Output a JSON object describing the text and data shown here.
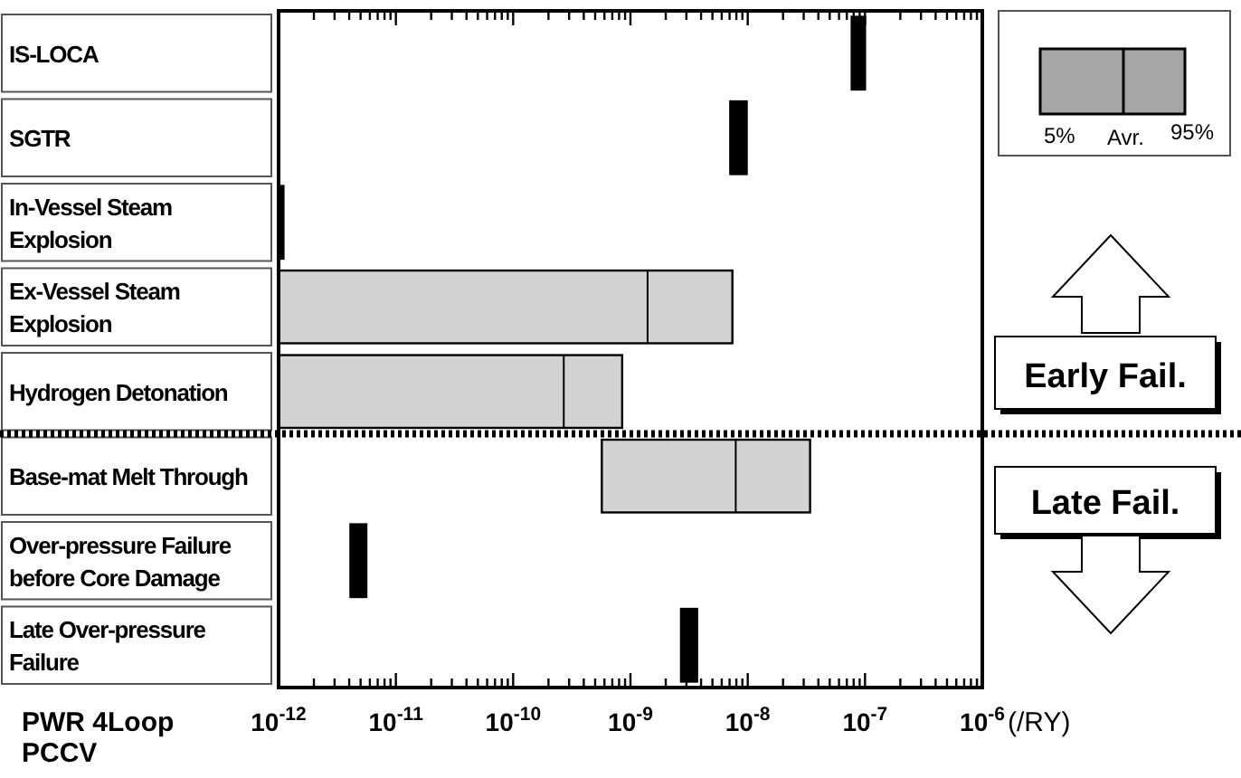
{
  "chart_data": {
    "type": "box",
    "orientation": "horizontal",
    "log": "x",
    "xlabel": "(/RY)",
    "categories": [
      "IS-LOCA",
      "SGTR",
      "In-Vessel Steam Explosion",
      "Ex-Vessel Steam Explosion",
      "Hydrogen Detonation",
      "Base-mat Melt Through",
      "Over-pressure Failure before Core Damage",
      "Late Over-pressure Failure"
    ],
    "boxes": [
      {
        "low": 7.7e-08,
        "q1": 7.7e-08,
        "median": 9e-08,
        "q3": 1e-07,
        "high": 1e-07
      },
      {
        "low": 7.1e-09,
        "q1": 7.1e-09,
        "median": 8.3e-09,
        "q3": 9.8e-09,
        "high": 9.8e-09
      },
      {
        "low": 1e-12,
        "q1": 1e-12,
        "median": 1.05e-12,
        "q3": 1.1e-12,
        "high": 1.1e-12
      },
      {
        "low": 1e-12,
        "q1": 1e-12,
        "median": 1.4e-09,
        "q3": 7.4e-09,
        "high": 7.4e-09
      },
      {
        "low": 1e-12,
        "q1": 1e-12,
        "median": 2.7e-10,
        "q3": 8.5e-10,
        "high": 8.5e-10
      },
      {
        "low": 5.7e-10,
        "q1": 5.7e-10,
        "median": 7.9e-09,
        "q3": 3.4e-08,
        "high": 3.4e-08
      },
      {
        "low": 4.1e-12,
        "q1": 4.1e-12,
        "median": 4.8e-12,
        "q3": 5.6e-12,
        "high": 5.6e-12
      },
      {
        "low": 2.7e-09,
        "q1": 2.7e-09,
        "median": 3.2e-09,
        "q3": 3.7e-09,
        "high": 3.7e-09
      }
    ],
    "colors": [
      "#000000",
      "#000000",
      "#000000",
      "#d3d3d3",
      "#d3d3d3",
      "#d3d3d3",
      "#000000",
      "#000000"
    ],
    "xlim": [
      1e-12,
      1e-06
    ],
    "xticks": [
      {
        "value": 1e-12,
        "label": "10$^{-12}$"
      },
      {
        "value": 2e-12,
        "label": null
      },
      {
        "value": 3e-12,
        "label": null
      },
      {
        "value": 4e-12,
        "label": null
      },
      {
        "value": 5e-12,
        "label": null
      },
      {
        "value": 6e-12,
        "label": null
      },
      {
        "value": 7e-12,
        "label": null
      },
      {
        "value": 8e-12,
        "label": null
      },
      {
        "value": 9e-12,
        "label": null
      },
      {
        "value": 1e-11,
        "label": "10$^{-11}$"
      },
      {
        "value": 2e-11,
        "label": null
      },
      {
        "value": 3e-11,
        "label": null
      },
      {
        "value": 4e-11,
        "label": null
      },
      {
        "value": 5e-11,
        "label": null
      },
      {
        "value": 6e-11,
        "label": null
      },
      {
        "value": 7e-11,
        "label": null
      },
      {
        "value": 8e-11,
        "label": null
      },
      {
        "value": 9e-11,
        "label": null
      },
      {
        "value": 1e-10,
        "label": "10$^{-10}$"
      },
      {
        "value": 2e-10,
        "label": null
      },
      {
        "value": 3e-10,
        "label": null
      },
      {
        "value": 4e-10,
        "label": null
      },
      {
        "value": 5e-10,
        "label": null
      },
      {
        "value": 6e-10,
        "label": null
      },
      {
        "value": 7e-10,
        "label": null
      },
      {
        "value": 8e-10,
        "label": null
      },
      {
        "value": 9e-10,
        "label": null
      },
      {
        "value": 1e-09,
        "label": "10$^{-9}$"
      },
      {
        "value": 2e-09,
        "label": null
      },
      {
        "value": 3e-09,
        "label": null
      },
      {
        "value": 4e-09,
        "label": null
      },
      {
        "value": 5e-09,
        "label": null
      },
      {
        "value": 6e-09,
        "label": null
      },
      {
        "value": 7e-09,
        "label": null
      },
      {
        "value": 8e-09,
        "label": null
      },
      {
        "value": 9e-09,
        "label": null
      },
      {
        "value": 1e-08,
        "label": "10$^{-8}$"
      },
      {
        "value": 2e-08,
        "label": null
      },
      {
        "value": 3e-08,
        "label": null
      },
      {
        "value": 4e-08,
        "label": null
      },
      {
        "value": 5e-08,
        "label": null
      },
      {
        "value": 6e-08,
        "label": null
      },
      {
        "value": 7e-08,
        "label": null
      },
      {
        "value": 8e-08,
        "label": null
      },
      {
        "value": 9e-08,
        "label": null
      },
      {
        "value": 1e-07,
        "label": "10$^{-7}$"
      },
      {
        "value": 2e-07,
        "label": null
      },
      {
        "value": 3e-07,
        "label": null
      },
      {
        "value": 4e-07,
        "label": null
      },
      {
        "value": 5e-07,
        "label": null
      },
      {
        "value": 6e-07,
        "label": null
      },
      {
        "value": 7e-07,
        "label": null
      },
      {
        "value": 8e-07,
        "label": null
      },
      {
        "value": 9e-07,
        "label": null
      },
      {
        "value": 1e-06,
        "label": "10$^{-6}$"
      }
    ],
    "annotations": [
      "5%",
      "Avr.",
      "95%",
      "Early Fail.",
      "Late Fail.",
      "PWR 4Loop PCCV"
    ]
  }
}
